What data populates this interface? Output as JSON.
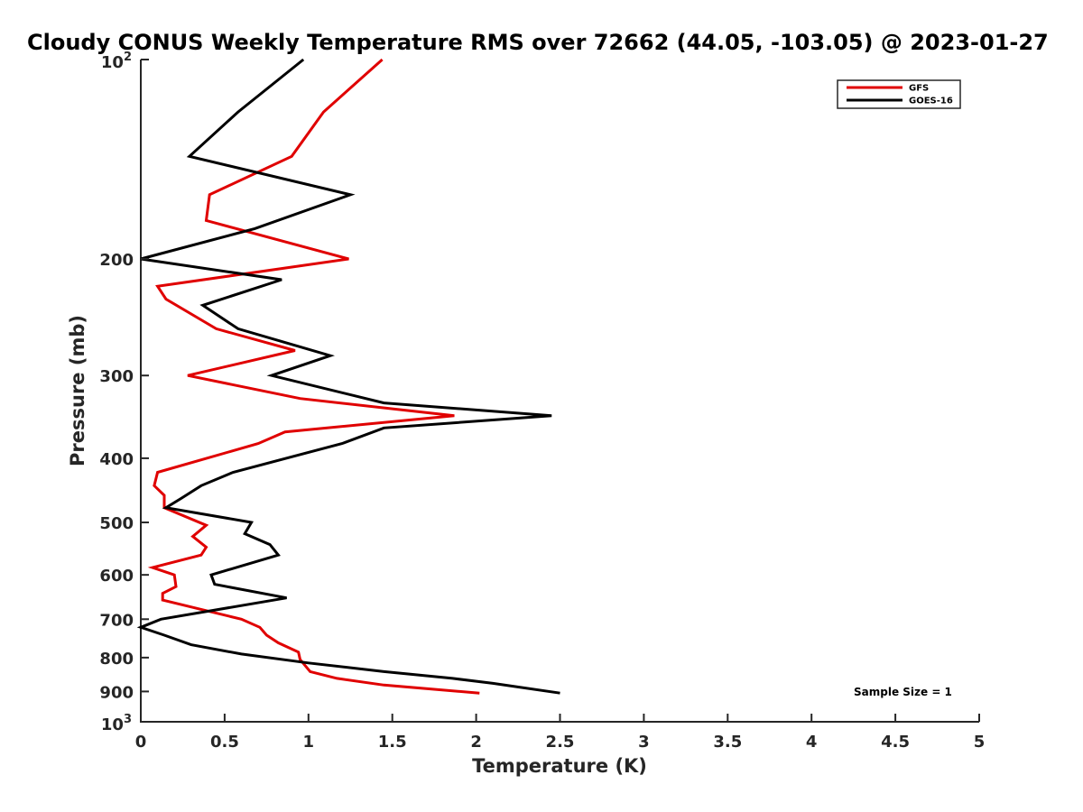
{
  "chart_data": {
    "type": "line",
    "title": "Cloudy CONUS Weekly Temperature RMS over 72662 (44.05, -103.05) @ 2023-01-27",
    "xlabel": "Temperature (K)",
    "ylabel": "Pressure (mb)",
    "xlim": [
      0,
      5
    ],
    "ylim": [
      100,
      1000
    ],
    "y_scale": "log",
    "y_reversed": true,
    "x_ticks": [
      "0",
      "0.5",
      "1",
      "1.5",
      "2",
      "2.5",
      "3",
      "3.5",
      "4",
      "4.5",
      "5"
    ],
    "y_ticks": [
      {
        "value": 200,
        "label": "200"
      },
      {
        "value": 300,
        "label": "300"
      },
      {
        "value": 400,
        "label": "400"
      },
      {
        "value": 500,
        "label": "500"
      },
      {
        "value": 600,
        "label": "600"
      },
      {
        "value": 700,
        "label": "700"
      },
      {
        "value": 800,
        "label": "800"
      },
      {
        "value": 900,
        "label": "900"
      }
    ],
    "y_decade_ticks": [
      {
        "value": 100,
        "base": "10",
        "exp": "2"
      },
      {
        "value": 1000,
        "base": "10",
        "exp": "3"
      }
    ],
    "grid": false,
    "legend_position": "top-right",
    "annotation": "Sample Size = 1",
    "series": [
      {
        "name": "GFS",
        "color": "#e00000",
        "points": [
          [
            1.44,
            100
          ],
          [
            1.09,
            120
          ],
          [
            0.9,
            140
          ],
          [
            0.41,
            160
          ],
          [
            0.39,
            175
          ],
          [
            1.24,
            200
          ],
          [
            0.1,
            220
          ],
          [
            0.15,
            230
          ],
          [
            0.45,
            255
          ],
          [
            0.92,
            275
          ],
          [
            0.28,
            300
          ],
          [
            0.95,
            325
          ],
          [
            1.87,
            345
          ],
          [
            0.86,
            365
          ],
          [
            0.7,
            380
          ],
          [
            0.1,
            420
          ],
          [
            0.08,
            440
          ],
          [
            0.14,
            455
          ],
          [
            0.14,
            475
          ],
          [
            0.39,
            505
          ],
          [
            0.31,
            525
          ],
          [
            0.39,
            545
          ],
          [
            0.36,
            560
          ],
          [
            0.07,
            585
          ],
          [
            0.2,
            600
          ],
          [
            0.21,
            625
          ],
          [
            0.13,
            640
          ],
          [
            0.13,
            655
          ],
          [
            0.6,
            700
          ],
          [
            0.71,
            720
          ],
          [
            0.75,
            740
          ],
          [
            0.82,
            760
          ],
          [
            0.94,
            785
          ],
          [
            0.95,
            805
          ],
          [
            1.01,
            840
          ],
          [
            1.17,
            860
          ],
          [
            1.45,
            880
          ],
          [
            2.02,
            905
          ]
        ]
      },
      {
        "name": "GOES-16",
        "color": "#000000",
        "points": [
          [
            0.97,
            100
          ],
          [
            0.58,
            120
          ],
          [
            0.29,
            140
          ],
          [
            1.25,
            160
          ],
          [
            0.68,
            180
          ],
          [
            0.0,
            200
          ],
          [
            0.84,
            215
          ],
          [
            0.37,
            235
          ],
          [
            0.58,
            255
          ],
          [
            1.13,
            280
          ],
          [
            0.78,
            300
          ],
          [
            1.45,
            330
          ],
          [
            2.45,
            345
          ],
          [
            1.45,
            360
          ],
          [
            1.2,
            380
          ],
          [
            0.55,
            420
          ],
          [
            0.36,
            440
          ],
          [
            0.24,
            460
          ],
          [
            0.15,
            475
          ],
          [
            0.66,
            500
          ],
          [
            0.62,
            520
          ],
          [
            0.77,
            540
          ],
          [
            0.82,
            560
          ],
          [
            0.42,
            600
          ],
          [
            0.44,
            620
          ],
          [
            0.87,
            650
          ],
          [
            0.12,
            700
          ],
          [
            0.0,
            720
          ],
          [
            0.14,
            740
          ],
          [
            0.3,
            765
          ],
          [
            0.6,
            790
          ],
          [
            1.0,
            815
          ],
          [
            1.45,
            840
          ],
          [
            1.86,
            860
          ],
          [
            2.1,
            875
          ],
          [
            2.5,
            905
          ]
        ]
      }
    ]
  }
}
